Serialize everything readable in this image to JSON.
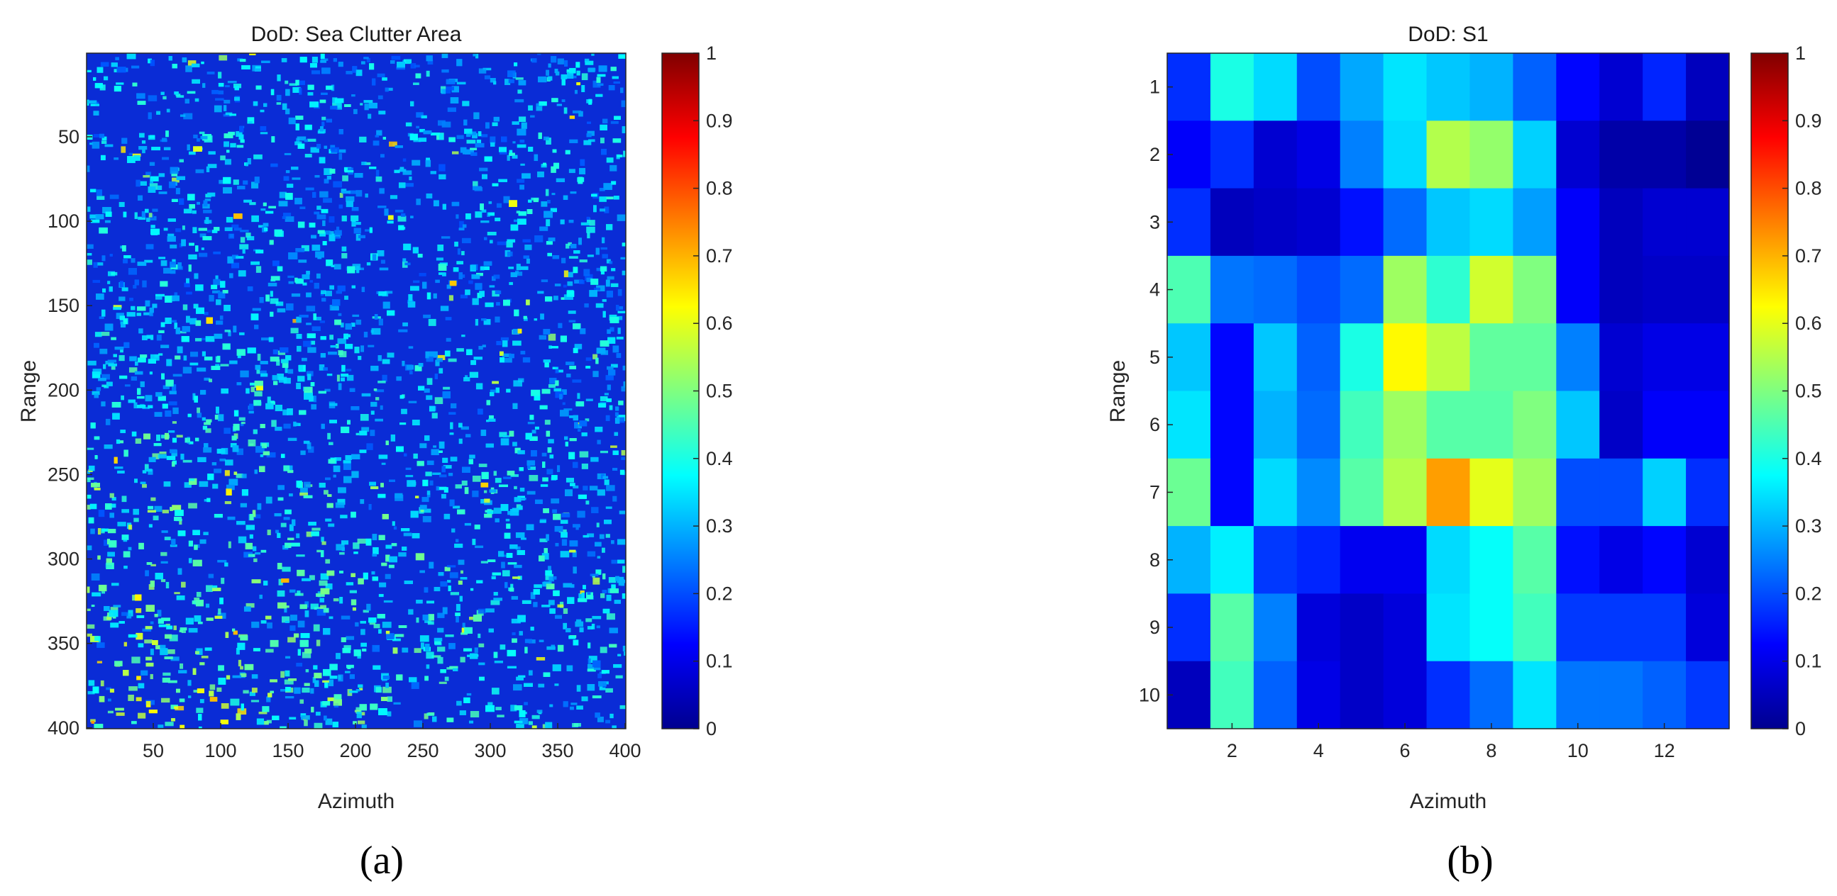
{
  "chart_data": [
    {
      "type": "heatmap",
      "title": "DoD: Sea Clutter Area",
      "xlabel": "Azimuth",
      "ylabel": "Range",
      "caption": "(a)",
      "x_range": [
        1,
        400
      ],
      "y_range": [
        1,
        400
      ],
      "y_reversed": true,
      "x_ticks": [
        50,
        100,
        150,
        200,
        250,
        300,
        350,
        400
      ],
      "y_ticks": [
        50,
        100,
        150,
        200,
        250,
        300,
        350,
        400
      ],
      "colormap": "jet",
      "clim": [
        0,
        1
      ],
      "colorbar_ticks": [
        "0",
        "0.1",
        "0.2",
        "0.3",
        "0.4",
        "0.5",
        "0.6",
        "0.7",
        "0.8",
        "0.9",
        "1"
      ],
      "texture": {
        "description_mean": 0.2,
        "typical_range": [
          0.05,
          0.45
        ],
        "occasional_peaks": 0.7,
        "brighter_region": "lower-left quadrant"
      }
    },
    {
      "type": "heatmap",
      "title": "DoD: S1",
      "xlabel": "Azimuth",
      "ylabel": "Range",
      "caption": "(b)",
      "x_range": [
        1,
        13
      ],
      "y_range": [
        1,
        10
      ],
      "y_reversed": true,
      "x_ticks": [
        2,
        4,
        6,
        8,
        10,
        12
      ],
      "y_ticks": [
        1,
        2,
        3,
        4,
        5,
        6,
        7,
        8,
        9,
        10
      ],
      "colormap": "jet",
      "clim": [
        0,
        1
      ],
      "colorbar_ticks": [
        "0",
        "0.1",
        "0.2",
        "0.3",
        "0.4",
        "0.5",
        "0.6",
        "0.7",
        "0.8",
        "0.9",
        "1"
      ],
      "values": [
        [
          0.17,
          0.4,
          0.34,
          0.2,
          0.29,
          0.35,
          0.32,
          0.3,
          0.22,
          0.13,
          0.08,
          0.16,
          0.06
        ],
        [
          0.12,
          0.17,
          0.08,
          0.1,
          0.25,
          0.34,
          0.55,
          0.52,
          0.33,
          0.08,
          0.04,
          0.04,
          0.02
        ],
        [
          0.17,
          0.06,
          0.07,
          0.08,
          0.14,
          0.23,
          0.32,
          0.34,
          0.28,
          0.12,
          0.06,
          0.08,
          0.08
        ],
        [
          0.45,
          0.24,
          0.23,
          0.2,
          0.23,
          0.53,
          0.42,
          0.58,
          0.5,
          0.12,
          0.06,
          0.07,
          0.07
        ],
        [
          0.32,
          0.13,
          0.32,
          0.22,
          0.4,
          0.63,
          0.56,
          0.47,
          0.47,
          0.25,
          0.08,
          0.1,
          0.1
        ],
        [
          0.35,
          0.13,
          0.3,
          0.23,
          0.44,
          0.53,
          0.46,
          0.46,
          0.5,
          0.32,
          0.07,
          0.12,
          0.12
        ],
        [
          0.48,
          0.13,
          0.34,
          0.26,
          0.46,
          0.55,
          0.72,
          0.6,
          0.53,
          0.2,
          0.2,
          0.33,
          0.17
        ],
        [
          0.3,
          0.36,
          0.18,
          0.16,
          0.11,
          0.11,
          0.34,
          0.38,
          0.46,
          0.14,
          0.1,
          0.13,
          0.08
        ],
        [
          0.17,
          0.46,
          0.25,
          0.09,
          0.07,
          0.09,
          0.35,
          0.38,
          0.44,
          0.18,
          0.18,
          0.18,
          0.09
        ],
        [
          0.06,
          0.44,
          0.22,
          0.1,
          0.07,
          0.09,
          0.17,
          0.23,
          0.35,
          0.24,
          0.24,
          0.22,
          0.18
        ]
      ]
    }
  ]
}
